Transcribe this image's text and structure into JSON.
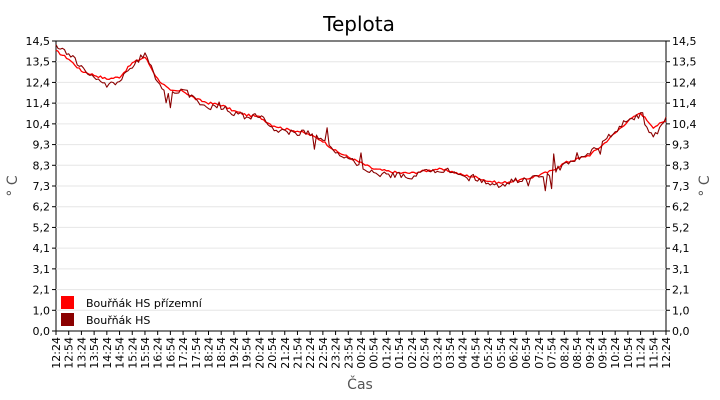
{
  "chart_data": {
    "type": "line",
    "title": "Teplota",
    "xlabel": "Čas",
    "ylabel": "° C",
    "ylim": [
      0,
      14.5
    ],
    "y_ticks": [
      "0,0",
      "1,0",
      "2,1",
      "3,1",
      "4,1",
      "5,2",
      "6,2",
      "7,3",
      "8,3",
      "9,3",
      "10,4",
      "11,4",
      "12,4",
      "13,5",
      "14,5"
    ],
    "x_ticks": [
      "12:24",
      "12:54",
      "13:24",
      "13:54",
      "14:24",
      "14:54",
      "15:24",
      "15:54",
      "16:24",
      "16:54",
      "17:24",
      "17:54",
      "18:24",
      "18:54",
      "19:24",
      "19:54",
      "20:24",
      "20:54",
      "21:24",
      "21:54",
      "22:24",
      "22:54",
      "23:24",
      "23:54",
      "00:24",
      "00:54",
      "01:24",
      "01:54",
      "02:24",
      "02:54",
      "03:24",
      "03:54",
      "04:24",
      "04:54",
      "05:24",
      "05:54",
      "06:24",
      "06:54",
      "07:24",
      "07:54",
      "08:24",
      "08:54",
      "09:24",
      "09:54",
      "10:24",
      "10:54",
      "11:24",
      "11:54",
      "12:24"
    ],
    "grid": true,
    "legend_position": "bottom-left",
    "series": [
      {
        "name": "Bouřňák HS přízemní",
        "color": "#ff0000",
        "values": [
          14.0,
          13.6,
          13.0,
          12.8,
          12.6,
          12.7,
          13.4,
          13.7,
          12.6,
          12.0,
          12.0,
          11.6,
          11.4,
          11.3,
          11.0,
          10.8,
          10.7,
          10.3,
          10.1,
          10.0,
          9.8,
          9.5,
          9.0,
          8.7,
          8.4,
          8.1,
          8.0,
          7.9,
          7.9,
          8.0,
          8.1,
          8.0,
          7.8,
          7.7,
          7.5,
          7.4,
          7.5,
          7.6,
          7.8,
          8.0,
          8.4,
          8.6,
          8.8,
          9.3,
          9.9,
          10.5,
          10.9,
          10.2,
          10.5
        ]
      },
      {
        "name": "Bouřňák HS",
        "color": "#8b0000",
        "values": [
          14.2,
          13.9,
          13.2,
          12.6,
          12.3,
          12.5,
          13.2,
          13.9,
          12.4,
          11.9,
          12.1,
          11.5,
          11.2,
          11.2,
          10.9,
          10.7,
          10.8,
          10.1,
          10.0,
          9.9,
          9.9,
          9.6,
          8.9,
          8.6,
          8.3,
          7.9,
          7.8,
          7.8,
          7.7,
          8.0,
          8.0,
          8.0,
          7.7,
          7.6,
          7.4,
          7.3,
          7.5,
          7.6,
          7.7,
          7.9,
          8.3,
          8.5,
          8.9,
          9.4,
          10.0,
          10.6,
          10.8,
          9.6,
          10.7
        ]
      }
    ]
  }
}
